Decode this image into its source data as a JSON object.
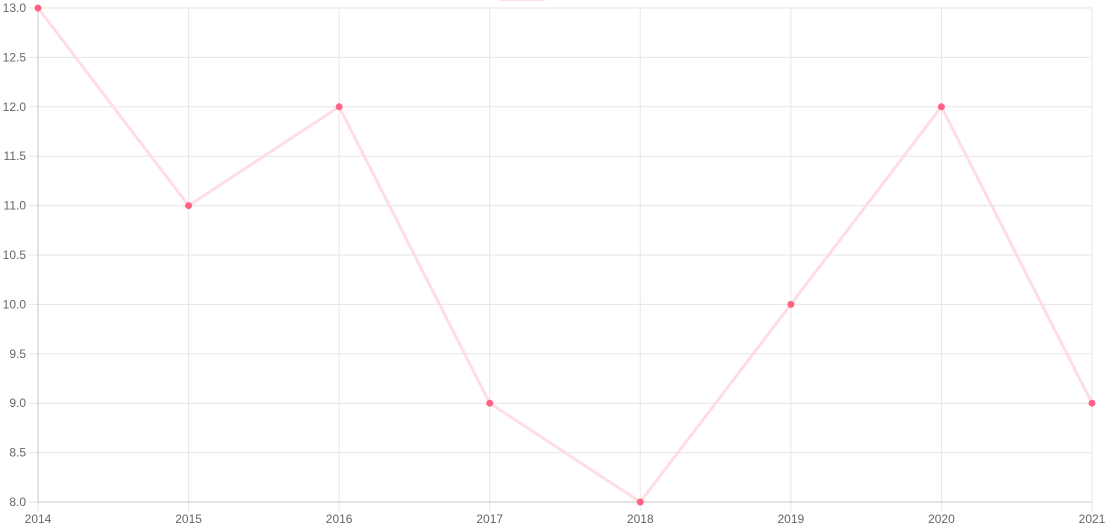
{
  "chart_data": {
    "type": "line",
    "title": "",
    "xlabel": "",
    "ylabel": "",
    "categories": [
      "2014",
      "2015",
      "2016",
      "2017",
      "2018",
      "2019",
      "2020",
      "2021"
    ],
    "series": [
      {
        "values": [
          13,
          11,
          12,
          9,
          8,
          10,
          12,
          9
        ],
        "line_color": "#ffdde5",
        "point_color": "#ff6384"
      }
    ],
    "ylim": [
      8,
      13
    ],
    "yticks": [
      "8.0",
      "8.5",
      "9.0",
      "9.5",
      "10.0",
      "10.5",
      "11.0",
      "11.5",
      "12.0",
      "12.5",
      "13.0"
    ],
    "grid": true,
    "legend": "top-center",
    "grid_color": "#e6e6e6",
    "axis_color": "#c8c8c8",
    "tick_text_color": "#666666"
  }
}
